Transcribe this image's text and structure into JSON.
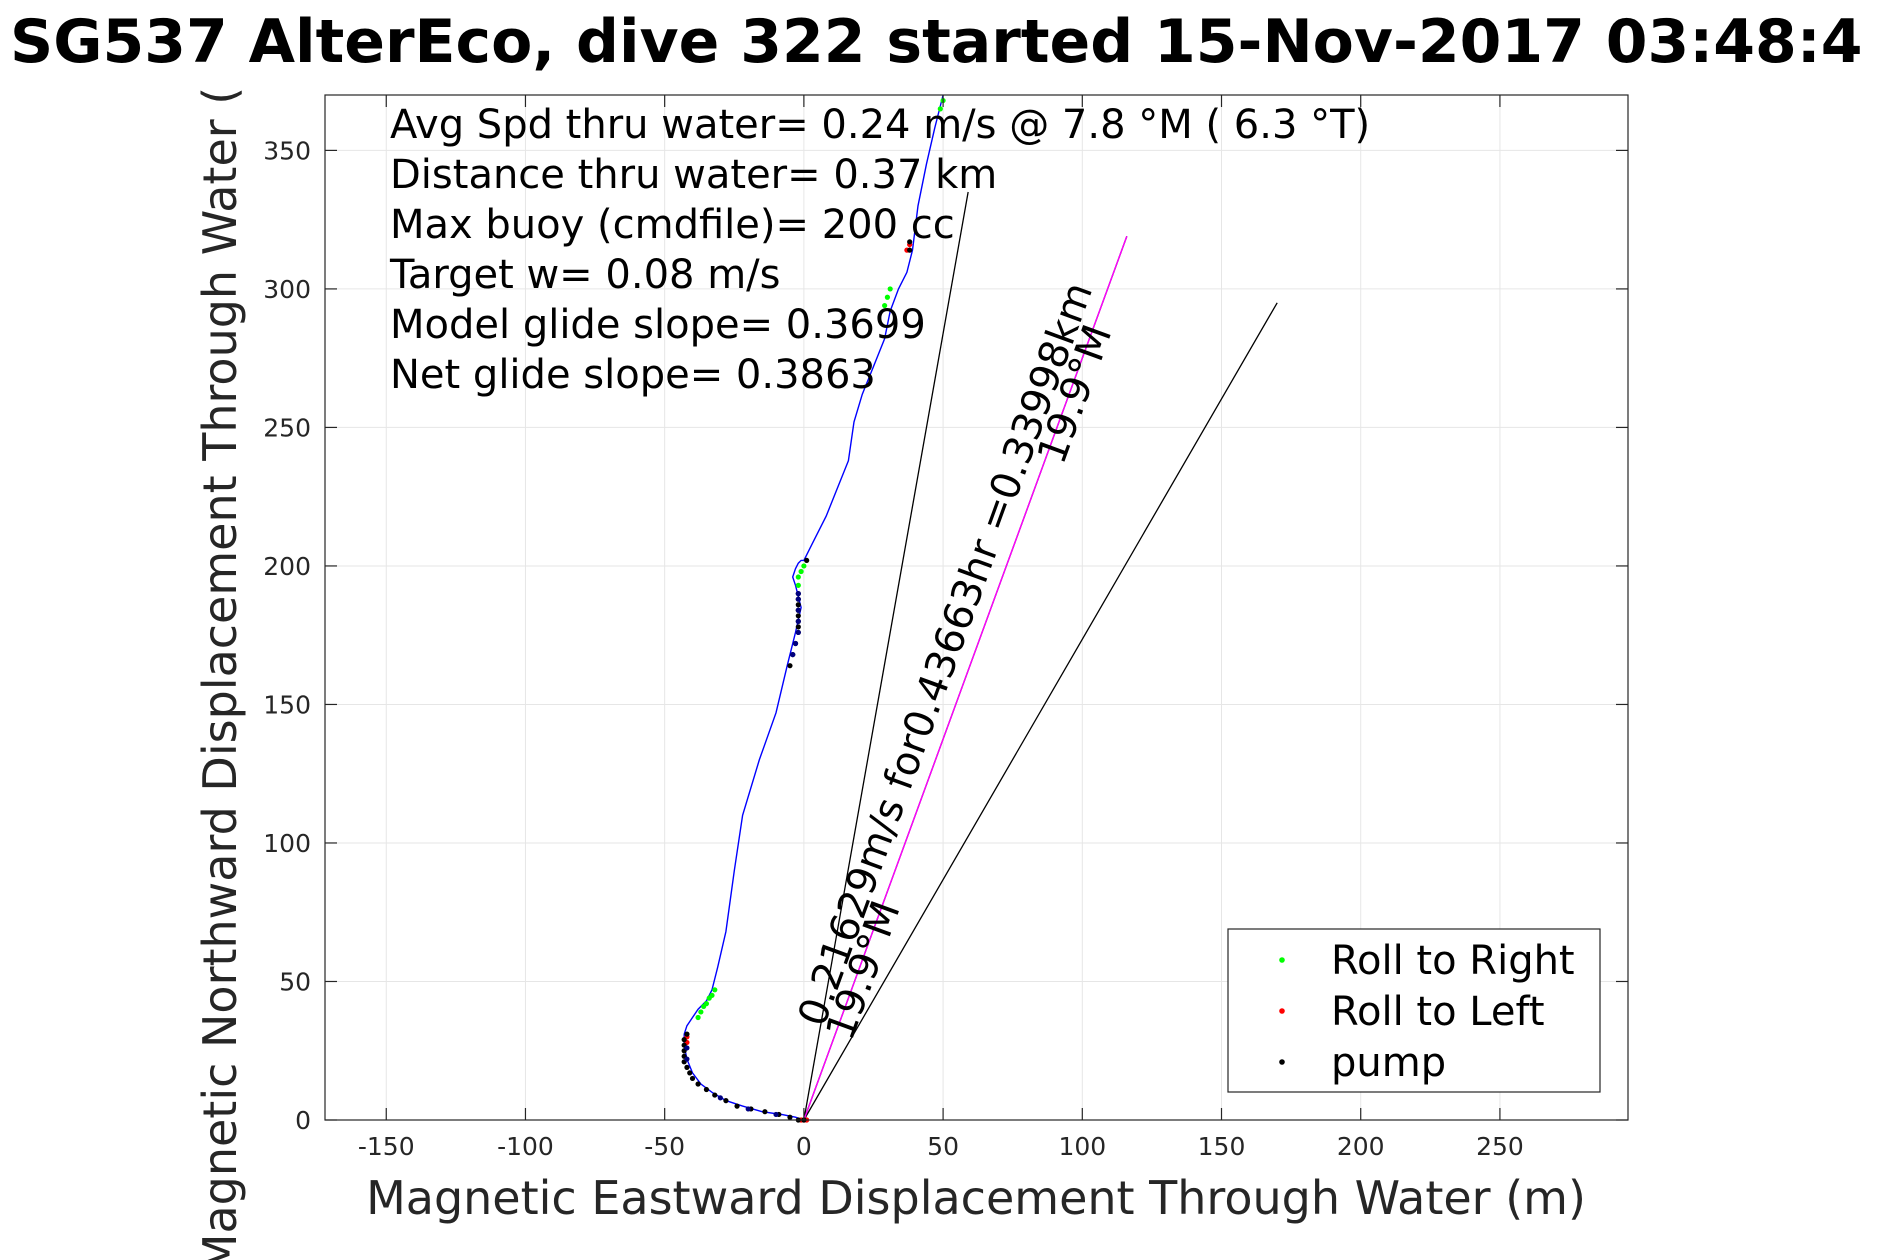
{
  "chart_data": {
    "type": "line",
    "title": "SG537 AlterEco, dive 322 started 15-Nov-2017 03:48:4",
    "xlabel": "Magnetic Eastward Displacement Through Water (m)",
    "ylabel": "Magnetic Northward Displacement Through Water (",
    "xlim": [
      -172,
      296
    ],
    "ylim": [
      0,
      370
    ],
    "x_ticks": [
      -150,
      -100,
      -50,
      0,
      50,
      100,
      150,
      200,
      250
    ],
    "y_ticks": [
      0,
      50,
      100,
      150,
      200,
      250,
      300,
      350
    ],
    "grid": true,
    "annotations": [
      "Avg Spd thru water=  0.24 m/s @   7.8 °M (  6.3 °T)",
      "Distance thru water=  0.37 km",
      "Max buoy (cmdfile)= 200 cc",
      "Target w= 0.08 m/s",
      "Model glide slope= 0.3699",
      "Net glide slope= 0.3863"
    ],
    "rotated_labels": [
      {
        "text": "0.21629m/s for0.43663hr =0.33998km",
        "at": [
          7,
          33
        ],
        "angle_deg": 20
      },
      {
        "text": "19.9°M",
        "at": [
          17,
          28
        ],
        "angle_deg": 20
      },
      {
        "text": "19.9°M",
        "at": [
          93,
          236
        ],
        "angle_deg": 20
      }
    ],
    "series": [
      {
        "name": "",
        "color": "#0000ff",
        "x": [
          0,
          -3,
          -8,
          -15,
          -22,
          -28,
          -33,
          -37,
          -40,
          -42,
          -43,
          -43,
          -42,
          -40,
          -38,
          -35,
          -33,
          -31,
          -28,
          -25,
          -22,
          -16,
          -10,
          -6,
          -3,
          -1,
          -3,
          -4,
          -3,
          -2,
          -1,
          0,
          3,
          8,
          12,
          16,
          18,
          21,
          25,
          29,
          31,
          34,
          37,
          39,
          41,
          44,
          47,
          50
        ],
        "y": [
          0,
          1,
          2,
          3,
          5,
          7,
          10,
          13,
          17,
          22,
          27,
          31,
          34,
          37,
          40,
          43,
          47,
          55,
          68,
          90,
          110,
          130,
          147,
          164,
          176,
          185,
          193,
          196,
          199,
          201,
          202,
          202,
          208,
          218,
          228,
          238,
          252,
          262,
          272,
          282,
          292,
          300,
          306,
          314,
          330,
          345,
          358,
          370
        ]
      },
      {
        "name": "",
        "color": "#ff00ff",
        "x": [
          0,
          116
        ],
        "y": [
          0,
          319
        ]
      }
    ],
    "reference_lines": [
      {
        "color": "#000000",
        "x": [
          0,
          59
        ],
        "y": [
          0,
          335
        ]
      },
      {
        "color": "#000000",
        "x": [
          0,
          170
        ],
        "y": [
          0,
          295
        ]
      },
      {
        "color": "#000000",
        "x": [
          0,
          116
        ],
        "y": [
          0,
          319
        ]
      }
    ],
    "markers": [
      {
        "name": "Roll to Right",
        "color": "#00ff00",
        "points": [
          [
            -38,
            37
          ],
          [
            -37,
            39
          ],
          [
            -36,
            41
          ],
          [
            -35,
            42
          ],
          [
            -34,
            44
          ],
          [
            -33,
            45
          ],
          [
            -32,
            47
          ],
          [
            -2,
            193
          ],
          [
            -2,
            196
          ],
          [
            -1,
            198
          ],
          [
            0,
            200
          ],
          [
            29,
            294
          ],
          [
            30,
            297
          ],
          [
            31,
            300
          ],
          [
            49,
            365
          ],
          [
            50,
            368
          ]
        ]
      },
      {
        "name": "Roll to Left",
        "color": "#ff0000",
        "points": [
          [
            -1,
            0
          ],
          [
            0,
            0
          ],
          [
            1,
            0
          ],
          [
            37,
            314
          ],
          [
            38,
            316
          ],
          [
            -42,
            28
          ],
          [
            -42,
            30
          ]
        ]
      },
      {
        "name": "pump",
        "color": "#000000",
        "points": [
          [
            0,
            0
          ],
          [
            -2,
            0
          ],
          [
            -5,
            1
          ],
          [
            -9,
            2
          ],
          [
            -14,
            3
          ],
          [
            -19,
            4
          ],
          [
            -24,
            5
          ],
          [
            -28,
            7
          ],
          [
            -32,
            9
          ],
          [
            -35,
            11
          ],
          [
            -38,
            13
          ],
          [
            -40,
            15
          ],
          [
            -41,
            17
          ],
          [
            -42,
            19
          ],
          [
            -43,
            21
          ],
          [
            -43,
            23
          ],
          [
            -43,
            25
          ],
          [
            -43,
            27
          ],
          [
            -43,
            29
          ],
          [
            -42,
            31
          ],
          [
            -5,
            164
          ],
          [
            -4,
            168
          ],
          [
            -3,
            172
          ],
          [
            -2,
            176
          ],
          [
            -2,
            178
          ],
          [
            -2,
            180
          ],
          [
            -2,
            182
          ],
          [
            -2,
            184
          ],
          [
            -2,
            186
          ],
          [
            -2,
            188
          ],
          [
            -2,
            190
          ],
          [
            1,
            202
          ],
          [
            38,
            314
          ],
          [
            38,
            317
          ]
        ]
      },
      {
        "name": "",
        "color": "#000080",
        "points": [
          [
            -4,
            168
          ],
          [
            -3,
            172
          ],
          [
            -2,
            176
          ],
          [
            -2,
            180
          ],
          [
            -2,
            184
          ],
          [
            -2,
            188
          ],
          [
            -2,
            190
          ],
          [
            -42,
            22
          ],
          [
            -42,
            26
          ],
          [
            -30,
            8
          ],
          [
            -20,
            4
          ],
          [
            -10,
            2
          ]
        ]
      }
    ],
    "legend": {
      "placement": "bottom-right",
      "entries": [
        {
          "label": "Roll to Right",
          "color": "#00ff00"
        },
        {
          "label": "Roll to Left",
          "color": "#ff0000"
        },
        {
          "label": "pump",
          "color": "#000000"
        }
      ]
    }
  }
}
